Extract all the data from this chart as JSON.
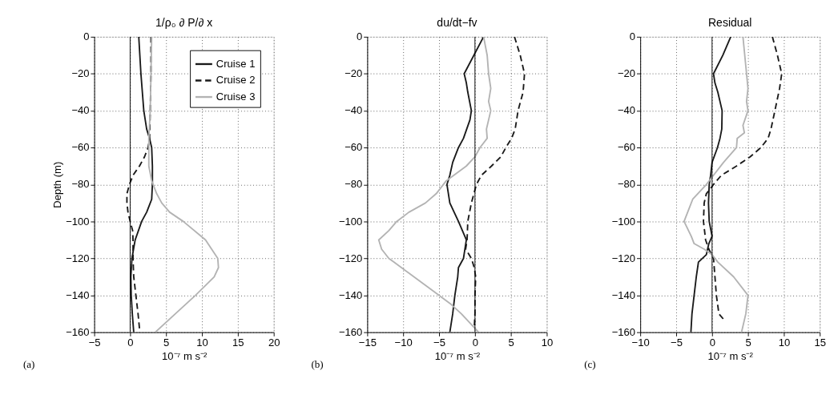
{
  "chart_data": [
    {
      "type": "line",
      "title": "1/ρ₀ ∂ P/∂ x",
      "xlabel": "10⁻⁷ m s⁻²",
      "ylabel": "Depth (m)",
      "xlim": [
        -5,
        20
      ],
      "xticks": [
        -5,
        0,
        5,
        10,
        15,
        20
      ],
      "ylim": [
        -160,
        0
      ],
      "yticks": [
        -160,
        -140,
        -120,
        -100,
        -80,
        -60,
        -40,
        -20,
        0
      ],
      "grid": true,
      "legend": "top right",
      "annotations": [
        "(a)"
      ],
      "ref_lines": [
        {
          "axis": "x",
          "value": 0,
          "color": "#000000"
        }
      ],
      "series": [
        {
          "name": "Cruise 1",
          "color": "#1a1a1a",
          "line_style": "solid",
          "x": [
            1.2,
            1.5,
            1.9,
            2.3,
            2.7,
            3.0,
            3.1,
            3.1,
            3.0,
            2.3,
            1.6,
            0.7,
            0.25,
            0.1,
            0.15,
            0.3,
            0.5
          ],
          "values": [
            0,
            -20,
            -40,
            -50,
            -55,
            -60,
            -70,
            -80,
            -88,
            -95,
            -100,
            -110,
            -120,
            -130,
            -140,
            -150,
            -160
          ]
        },
        {
          "name": "Cruise 2",
          "color": "#1a1a1a",
          "line_style": "dashed",
          "x": [
            2.9,
            2.9,
            2.8,
            2.7,
            2.5,
            2.0,
            1.3,
            0.4,
            -0.1,
            -0.45,
            -0.45,
            -0.3,
            0,
            0.35,
            0.4,
            0.4,
            0.5,
            0.8,
            1.1,
            1.35
          ],
          "values": [
            0,
            -20,
            -40,
            -55,
            -60,
            -65,
            -70,
            -75,
            -80,
            -85,
            -90,
            -95,
            -100,
            -105,
            -110,
            -120,
            -130,
            -140,
            -150,
            -160
          ]
        },
        {
          "name": "Cruise 3",
          "color": "#b3b3b3",
          "line_style": "solid",
          "x": [
            3.0,
            2.9,
            2.8,
            2.6,
            2.6,
            2.6,
            3.0,
            3.7,
            4.4,
            5.5,
            7.4,
            10.5,
            12.2,
            12.3,
            11.7,
            9.1,
            6.3,
            3.5
          ],
          "values": [
            0,
            -20,
            -40,
            -55,
            -60,
            -70,
            -78,
            -85,
            -90,
            -95,
            -100,
            -110,
            -120,
            -125,
            -130,
            -140,
            -150,
            -160
          ]
        }
      ]
    },
    {
      "type": "line",
      "title": "du/dt−fv",
      "xlabel": "10⁻⁷ m s⁻²",
      "xlim": [
        -15,
        10
      ],
      "xticks": [
        -15,
        -10,
        -5,
        0,
        5,
        10
      ],
      "ylim": [
        -160,
        0
      ],
      "yticks": [
        -160,
        -140,
        -120,
        -100,
        -80,
        -60,
        -40,
        -20,
        0
      ],
      "grid": true,
      "annotations": [
        "(b)"
      ],
      "ref_lines": [
        {
          "axis": "x",
          "value": 0,
          "color": "#000000"
        }
      ],
      "series": [
        {
          "color": "#1a1a1a",
          "line_style": "solid",
          "x": [
            1.2,
            -1.5,
            -1.2,
            -1.0,
            -0.5,
            -0.7,
            -1.6,
            -2.3,
            -3.1,
            -3.5,
            -3.9,
            -3.5,
            -2.3,
            -1.2,
            -1.4,
            -1.6,
            -2.3,
            -2.4,
            -2.8,
            -3.1,
            -3.5
          ],
          "values": [
            0,
            -20,
            -25,
            -30,
            -40,
            -45,
            -55,
            -60,
            -68,
            -75,
            -80,
            -90,
            -100,
            -110,
            -115,
            -120,
            -125,
            -130,
            -140,
            -150,
            -160
          ]
        },
        {
          "color": "#1a1a1a",
          "line_style": "dashed",
          "x": [
            5.5,
            6.3,
            6.9,
            6.7,
            6.0,
            5.6,
            5.1,
            4.3,
            3.6,
            2.3,
            0.9,
            0.2,
            -0.5,
            -1.0,
            -1.1,
            -1.3,
            -0.5,
            -0.1,
            0.1,
            0,
            0,
            -0.1
          ],
          "values": [
            0,
            -10,
            -20,
            -30,
            -40,
            -50,
            -55,
            -60,
            -65,
            -70,
            -75,
            -80,
            -90,
            -100,
            -110,
            -115,
            -120,
            -125,
            -130,
            -140,
            -150,
            -158
          ]
        },
        {
          "color": "#b3b3b3",
          "line_style": "solid",
          "x": [
            1.2,
            1.7,
            1.9,
            2.2,
            1.9,
            2.2,
            1.6,
            1.7,
            0.7,
            0,
            -1.2,
            -4.0,
            -5.4,
            -6.9,
            -9.2,
            -10.9,
            -12.0,
            -13.4,
            -13.0,
            -12.0,
            -11.3,
            -8.5,
            -5.7,
            -3.3,
            -1.9,
            -0.7,
            0.5
          ],
          "values": [
            0,
            -10,
            -20,
            -28,
            -35,
            -40,
            -50,
            -55,
            -60,
            -65,
            -70,
            -78,
            -85,
            -90,
            -95,
            -100,
            -105,
            -110,
            -115,
            -120,
            -122,
            -130,
            -138,
            -145,
            -150,
            -155,
            -160
          ]
        }
      ]
    },
    {
      "type": "line",
      "title": "Residual",
      "xlabel": "10⁻⁷ m s⁻²",
      "xlim": [
        -10,
        15
      ],
      "xticks": [
        -10,
        -5,
        0,
        5,
        10,
        15
      ],
      "ylim": [
        -160,
        0
      ],
      "yticks": [
        -160,
        -140,
        -120,
        -100,
        -80,
        -60,
        -40,
        -20,
        0
      ],
      "grid": true,
      "annotations": [
        "(c)"
      ],
      "ref_lines": [
        {
          "axis": "x",
          "value": 0,
          "color": "#000000"
        }
      ],
      "series": [
        {
          "color": "#1a1a1a",
          "line_style": "solid",
          "x": [
            2.6,
            1.5,
            0.2,
            0.4,
            0.8,
            1.4,
            1.35,
            1.1,
            0.75,
            0,
            -0.2,
            -0.4,
            -0.5,
            -0.4,
            0,
            -0.45,
            -0.8,
            -1.9,
            -2.2,
            -2.5,
            -2.8,
            -2.95
          ],
          "values": [
            0,
            -10,
            -20,
            -25,
            -30,
            -40,
            -50,
            -55,
            -60,
            -68,
            -75,
            -80,
            -90,
            -100,
            -108,
            -112,
            -118,
            -122,
            -130,
            -140,
            -150,
            -160
          ]
        },
        {
          "color": "#1a1a1a",
          "line_style": "dashed",
          "x": [
            8.4,
            9.1,
            9.7,
            9.4,
            8.75,
            8.2,
            7.8,
            6.8,
            5.3,
            3.4,
            1.3,
            0.2,
            -0.8,
            -1.1,
            -1.2,
            -0.9,
            -0.45,
            0.2,
            0.4,
            0.6,
            0.95,
            1.6
          ],
          "values": [
            0,
            -10,
            -20,
            -28,
            -40,
            -50,
            -55,
            -60,
            -65,
            -70,
            -75,
            -80,
            -85,
            -90,
            -100,
            -110,
            -115,
            -120,
            -130,
            -140,
            -150,
            -153
          ]
        },
        {
          "color": "#b3b3b3",
          "line_style": "solid",
          "x": [
            4.3,
            4.8,
            5.0,
            4.8,
            5.0,
            4.3,
            4.5,
            3.5,
            3.4,
            1.6,
            0.2,
            -0.8,
            -2.7,
            -3.9,
            -2.9,
            -2.5,
            -1.1,
            0,
            0.8,
            3.0,
            5.0,
            4.7,
            4.1
          ],
          "values": [
            0,
            -20,
            -28,
            -35,
            -40,
            -48,
            -52,
            -55,
            -60,
            -68,
            -75,
            -80,
            -88,
            -100,
            -108,
            -112,
            -115,
            -118,
            -122,
            -130,
            -140,
            -150,
            -160
          ]
        }
      ]
    }
  ]
}
